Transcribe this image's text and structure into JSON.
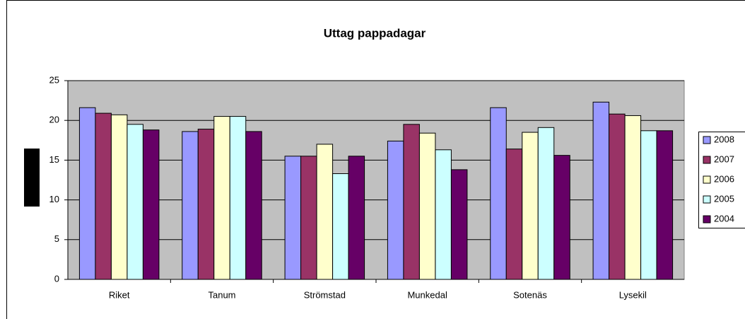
{
  "chart_data": {
    "type": "bar",
    "title": "Uttag pappadagar",
    "categories": [
      "Riket",
      "Tanum",
      "Strömstad",
      "Munkedal",
      "Sotenäs",
      "Lysekil"
    ],
    "series": [
      {
        "name": "2008",
        "color": "#9999ff",
        "values": [
          21.6,
          18.6,
          15.5,
          17.4,
          21.6,
          22.3
        ]
      },
      {
        "name": "2007",
        "color": "#993366",
        "values": [
          20.9,
          18.9,
          15.5,
          19.5,
          16.4,
          20.8
        ]
      },
      {
        "name": "2006",
        "color": "#ffffcc",
        "values": [
          20.7,
          20.5,
          17.0,
          18.4,
          18.5,
          20.6
        ]
      },
      {
        "name": "2005",
        "color": "#ccffff",
        "values": [
          19.5,
          20.5,
          13.3,
          16.3,
          19.1,
          18.7
        ]
      },
      {
        "name": "2004",
        "color": "#660066",
        "values": [
          18.8,
          18.6,
          15.5,
          13.8,
          15.6,
          18.7
        ]
      }
    ],
    "ylim": [
      0,
      25
    ],
    "yticks": [
      0,
      5,
      10,
      15,
      20,
      25
    ],
    "grid": true,
    "legend": "right"
  }
}
